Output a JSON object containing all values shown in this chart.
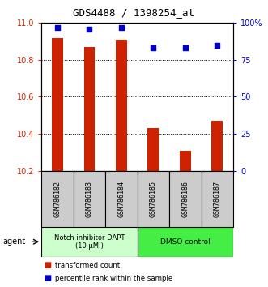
{
  "title": "GDS4488 / 1398254_at",
  "samples": [
    "GSM786182",
    "GSM786183",
    "GSM786184",
    "GSM786185",
    "GSM786186",
    "GSM786187"
  ],
  "bar_values": [
    10.92,
    10.87,
    10.91,
    10.43,
    10.31,
    10.47
  ],
  "percentile_values": [
    97,
    96,
    97,
    83,
    83,
    85
  ],
  "ylim_left": [
    10.2,
    11.0
  ],
  "ylim_right": [
    0,
    100
  ],
  "yticks_left": [
    10.2,
    10.4,
    10.6,
    10.8,
    11.0
  ],
  "yticks_right": [
    0,
    25,
    50,
    75,
    100
  ],
  "ytick_labels_right": [
    "0",
    "25",
    "50",
    "75",
    "100%"
  ],
  "bar_color": "#cc2200",
  "dot_color": "#0000cc",
  "bar_bottom": 10.2,
  "group1_label": "Notch inhibitor DAPT\n(10 μM.)",
  "group2_label": "DMSO control",
  "group1_color": "#ccffcc",
  "group2_color": "#44ee44",
  "agent_label": "agent",
  "legend1": "transformed count",
  "legend2": "percentile rank within the sample",
  "bar_color_left": "#cc2200",
  "bar_color_right": "#0000cc",
  "sample_label_bg": "#cccccc",
  "spine_color": "#000000"
}
